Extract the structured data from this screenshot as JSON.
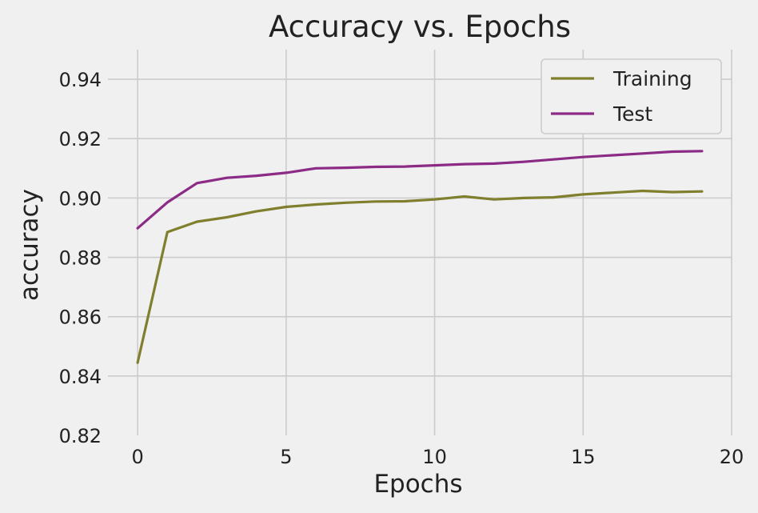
{
  "chart_data": {
    "type": "line",
    "title": "Accuracy vs. Epochs",
    "xlabel": "Epochs",
    "ylabel": "accuracy",
    "xlim": [
      -1,
      20
    ],
    "ylim": [
      0.82,
      0.95
    ],
    "xticks": [
      0,
      5,
      10,
      15,
      20
    ],
    "yticks": [
      0.82,
      0.84,
      0.86,
      0.88,
      0.9,
      0.92,
      0.94
    ],
    "xtick_labels": [
      "0",
      "5",
      "10",
      "15",
      "20"
    ],
    "ytick_labels": [
      "0.82",
      "0.84",
      "0.86",
      "0.88",
      "0.90",
      "0.92",
      "0.94"
    ],
    "grid": true,
    "legend_position": "top-right",
    "x": [
      0,
      1,
      2,
      3,
      4,
      5,
      6,
      7,
      8,
      9,
      10,
      11,
      12,
      13,
      14,
      15,
      16,
      17,
      18,
      19
    ],
    "series": [
      {
        "name": "Training",
        "color": "#7f7f2e",
        "values": [
          0.8445,
          0.8885,
          0.892,
          0.8935,
          0.8955,
          0.897,
          0.8978,
          0.8984,
          0.8988,
          0.8989,
          0.8995,
          0.9005,
          0.8995,
          0.9,
          0.9002,
          0.9012,
          0.9018,
          0.9024,
          0.902,
          0.9022
        ]
      },
      {
        "name": "Test",
        "color": "#8b2b86",
        "values": [
          0.8898,
          0.8985,
          0.905,
          0.9068,
          0.9075,
          0.9085,
          0.91,
          0.9102,
          0.9105,
          0.9106,
          0.911,
          0.9114,
          0.9116,
          0.9122,
          0.913,
          0.9138,
          0.9144,
          0.915,
          0.9156,
          0.9158
        ]
      }
    ]
  }
}
